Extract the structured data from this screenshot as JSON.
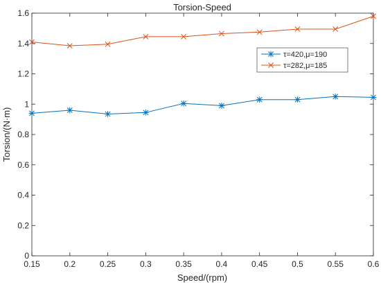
{
  "chart_data": {
    "type": "line",
    "title": "Torsion-Speed",
    "xlabel": "Speed/(rpm)",
    "ylabel": "Torsion/(N·m)",
    "x": [
      0.15,
      0.2,
      0.25,
      0.3,
      0.35,
      0.4,
      0.45,
      0.5,
      0.55,
      0.6
    ],
    "x_tick_labels": [
      "0.15",
      "0.2",
      "0.25",
      "0.3",
      "0.35",
      "0.4",
      "0.45",
      "0.5",
      "0.55",
      "0.6"
    ],
    "xlim": [
      0.15,
      0.6
    ],
    "ylim": [
      0,
      1.6
    ],
    "y_ticks": [
      0,
      0.2,
      0.4,
      0.6,
      0.8,
      1,
      1.2,
      1.4,
      1.6
    ],
    "y_tick_labels": [
      "0",
      "0.2",
      "0.4",
      "0.6",
      "0.8",
      "1",
      "1.2",
      "1.4",
      "1.6"
    ],
    "grid": false,
    "legend_position": "top-right",
    "series": [
      {
        "name": "τ=420,μ=190",
        "color": "#0072BD",
        "marker": "asterisk",
        "values": [
          0.94,
          0.96,
          0.935,
          0.945,
          1.005,
          0.99,
          1.03,
          1.03,
          1.05,
          1.045
        ]
      },
      {
        "name": "τ=282,μ=185",
        "color": "#D95319",
        "marker": "cross",
        "values": [
          1.41,
          1.385,
          1.395,
          1.445,
          1.445,
          1.465,
          1.475,
          1.495,
          1.495,
          1.58
        ]
      }
    ]
  }
}
